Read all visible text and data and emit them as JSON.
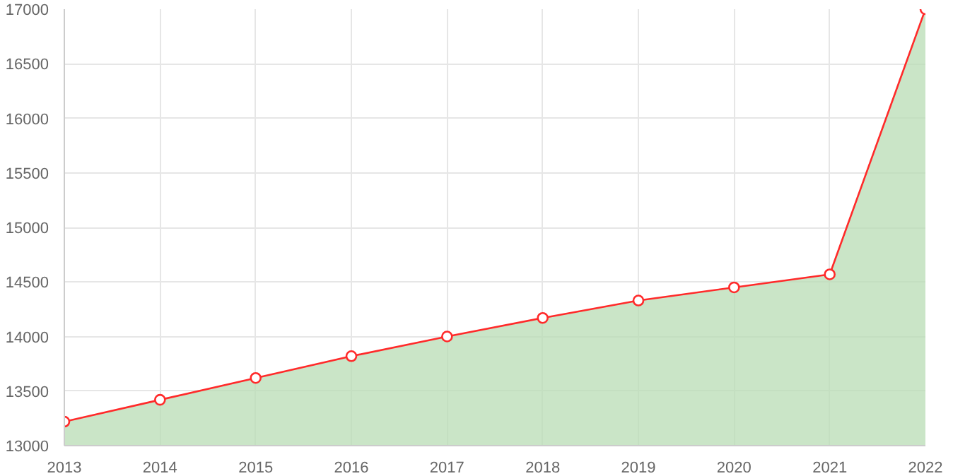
{
  "chart_data": {
    "type": "area",
    "x": [
      2013,
      2014,
      2015,
      2016,
      2017,
      2018,
      2019,
      2020,
      2021,
      2022
    ],
    "series": [
      {
        "color": "#ff2a2a",
        "values": [
          13220,
          13420,
          13620,
          13820,
          14000,
          14170,
          14330,
          14450,
          14570,
          17000
        ]
      }
    ],
    "xlim": [
      2013,
      2022
    ],
    "xticks": [
      2013,
      2014,
      2015,
      2016,
      2017,
      2018,
      2019,
      2020,
      2021,
      2022
    ],
    "ylim": [
      13000,
      17000
    ],
    "yticks": [
      13000,
      13500,
      14000,
      14500,
      15000,
      15500,
      16000,
      16500,
      17000
    ],
    "grid": true,
    "marker": "circle"
  }
}
